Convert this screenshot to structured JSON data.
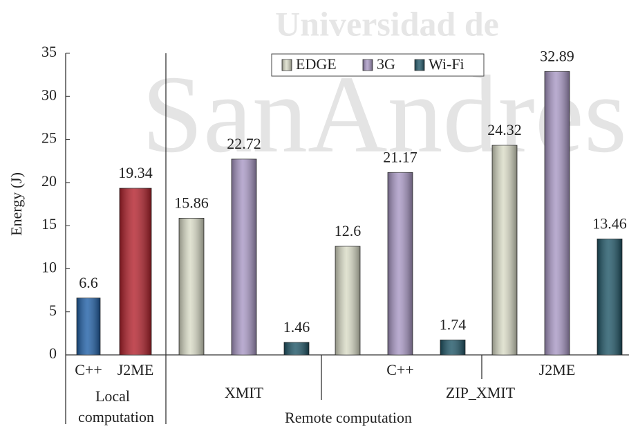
{
  "chart_data": {
    "type": "bar",
    "watermark": [
      "Universidad de",
      "SanAndres"
    ],
    "ylabel": "Energy (J)",
    "ylim": [
      0,
      35
    ],
    "yticks": [
      0,
      5,
      10,
      15,
      20,
      25,
      30,
      35
    ],
    "legend": "top",
    "local": {
      "label": [
        "Local",
        "computation"
      ],
      "categories": [
        "C++",
        "J2ME"
      ],
      "values": [
        6.6,
        19.34
      ],
      "colors": [
        "#1f5fa6",
        "#b3202b"
      ]
    },
    "remote": {
      "label": "Remote computation",
      "groups": [
        "XMIT",
        "ZIP_XMIT"
      ],
      "categories": [
        null,
        "C++",
        "J2ME"
      ],
      "series": [
        {
          "name": "EDGE",
          "color": "#d9dbc6",
          "values": [
            15.86,
            12.6,
            24.32
          ]
        },
        {
          "name": "3G",
          "color": "#a897c4",
          "values": [
            22.72,
            21.17,
            32.89
          ]
        },
        {
          "name": "Wi-Fi",
          "color": "#1e5566",
          "values": [
            1.46,
            1.74,
            13.46
          ]
        }
      ]
    }
  }
}
